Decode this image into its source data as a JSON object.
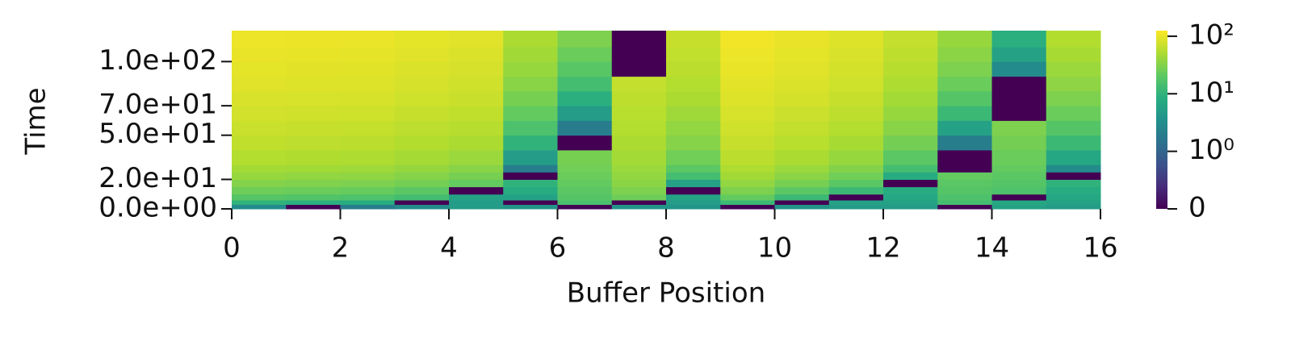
{
  "chart_data": {
    "type": "heatmap",
    "xlabel": "Buffer Position",
    "ylabel": "Time",
    "x_bins": [
      0,
      1,
      2,
      3,
      4,
      5,
      6,
      7,
      8,
      9,
      10,
      11,
      12,
      13,
      14,
      15,
      16
    ],
    "y_bins": [
      0,
      3,
      6,
      10,
      15,
      20,
      25,
      30,
      40,
      50,
      60,
      70,
      80,
      90,
      100,
      110,
      121
    ],
    "z": [
      [
        3,
        10,
        18,
        25,
        32,
        40,
        46,
        55,
        63,
        70,
        77,
        84,
        90,
        95,
        100,
        105
      ],
      [
        0,
        9,
        17,
        24,
        31,
        38,
        45,
        53,
        61,
        68,
        75,
        82,
        88,
        93,
        98,
        103
      ],
      [
        2,
        8,
        16,
        23,
        30,
        37,
        44,
        52,
        60,
        67,
        74,
        81,
        87,
        92,
        97,
        102
      ],
      [
        3,
        0,
        14,
        20,
        27,
        33,
        39,
        47,
        54,
        61,
        68,
        74,
        80,
        85,
        90,
        95
      ],
      [
        5,
        5,
        6,
        0,
        22,
        28,
        34,
        42,
        50,
        57,
        63,
        69,
        75,
        80,
        85,
        90
      ],
      [
        4,
        0,
        6,
        8,
        10,
        0,
        2,
        5,
        10,
        16,
        22,
        28,
        34,
        40,
        45,
        50
      ],
      [
        0,
        15,
        18,
        20,
        22,
        24,
        26,
        28,
        0,
        2,
        5,
        9,
        14,
        19,
        24,
        30
      ],
      [
        4,
        0,
        25,
        30,
        35,
        38,
        42,
        46,
        50,
        55,
        58,
        62,
        66,
        0,
        0,
        0
      ],
      [
        4,
        5,
        6,
        0,
        6,
        14,
        20,
        26,
        33,
        38,
        44,
        50,
        55,
        60,
        64,
        68
      ],
      [
        0,
        12,
        22,
        30,
        38,
        45,
        52,
        60,
        68,
        75,
        82,
        88,
        94,
        100,
        105,
        110
      ],
      [
        4,
        0,
        12,
        20,
        28,
        35,
        42,
        50,
        58,
        65,
        72,
        79,
        85,
        90,
        95,
        100
      ],
      [
        5,
        6,
        0,
        12,
        20,
        26,
        32,
        40,
        48,
        55,
        62,
        68,
        74,
        79,
        84,
        88
      ],
      [
        5,
        6,
        7,
        8,
        0,
        8,
        14,
        20,
        27,
        34,
        40,
        46,
        52,
        57,
        62,
        66
      ],
      [
        0,
        14,
        16,
        18,
        20,
        22,
        0,
        0,
        2,
        6,
        12,
        18,
        24,
        30,
        35,
        40
      ],
      [
        6,
        7,
        0,
        16,
        18,
        20,
        22,
        24,
        27,
        30,
        0,
        0,
        0,
        3,
        6,
        9
      ],
      [
        5,
        6,
        7,
        8,
        10,
        0,
        3,
        7,
        12,
        18,
        24,
        30,
        36,
        42,
        48,
        54
      ]
    ],
    "xlim": [
      0,
      16
    ],
    "xticks": [
      0,
      2,
      4,
      6,
      8,
      10,
      12,
      14,
      16
    ],
    "ylim": [
      0,
      121
    ],
    "yticks": [
      {
        "value": 0,
        "label": "0.0e+00"
      },
      {
        "value": 20,
        "label": "2.0e+01"
      },
      {
        "value": 50,
        "label": "5.0e+01"
      },
      {
        "value": 70,
        "label": "7.0e+01"
      },
      {
        "value": 100,
        "label": "1.0e+02"
      }
    ],
    "colormap": "viridis",
    "color_scale": "symlog",
    "linthresh": 1,
    "clim": [
      0,
      125
    ],
    "cticks": [
      0,
      {
        "value": 1,
        "label": "10⁰"
      },
      {
        "value": 10,
        "label": "10¹"
      },
      {
        "value": 100,
        "label": "10²"
      }
    ]
  }
}
